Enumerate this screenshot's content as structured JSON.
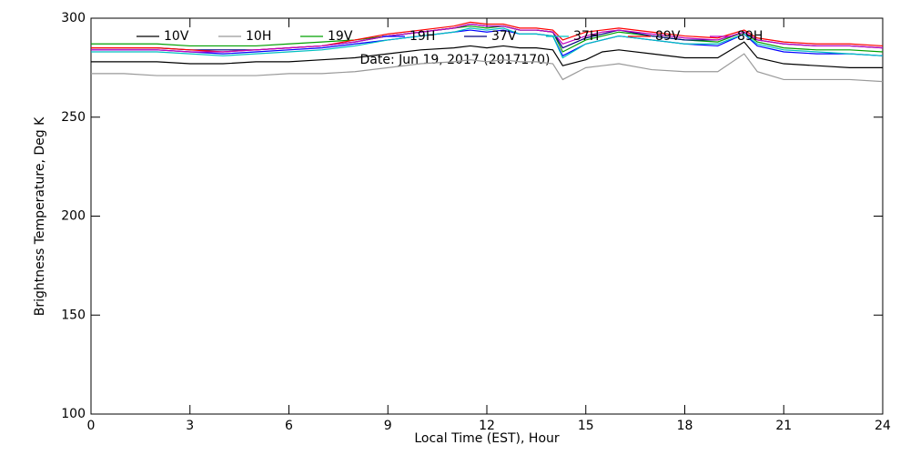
{
  "chart_data": {
    "type": "line",
    "annotation": "Date: Jun 19, 2017 (2017170)",
    "xlabel": "Local Time (EST), Hour",
    "ylabel": "Brightness Temperature, Deg K",
    "x": [
      0,
      1,
      2,
      3,
      4,
      5,
      6,
      7,
      8,
      9,
      10,
      11,
      11.5,
      12,
      12.5,
      13,
      13.5,
      14,
      14.3,
      15,
      15.5,
      16,
      17,
      18,
      19,
      19.8,
      20.2,
      21,
      22,
      23,
      24
    ],
    "xlim": [
      0,
      24
    ],
    "xticks": [
      0,
      3,
      6,
      9,
      12,
      15,
      18,
      21,
      24
    ],
    "ylim": [
      100,
      300
    ],
    "yticks": [
      100,
      150,
      200,
      250,
      300
    ],
    "legend": "top",
    "series": [
      {
        "name": "10V",
        "color": "#000000",
        "values": [
          278,
          278,
          278,
          277,
          277,
          278,
          278,
          279,
          280,
          282,
          284,
          285,
          286,
          285,
          286,
          285,
          285,
          284,
          276,
          279,
          283,
          284,
          282,
          280,
          280,
          288,
          280,
          277,
          276,
          275,
          275
        ]
      },
      {
        "name": "10H",
        "color": "#999999",
        "values": [
          272,
          272,
          271,
          271,
          271,
          271,
          272,
          272,
          273,
          275,
          277,
          278,
          279,
          278,
          279,
          278,
          278,
          277,
          269,
          275,
          276,
          277,
          274,
          273,
          273,
          282,
          273,
          269,
          269,
          269,
          268
        ]
      },
      {
        "name": "19V",
        "color": "#00a000",
        "values": [
          287,
          287,
          287,
          286,
          286,
          286,
          287,
          288,
          289,
          291,
          293,
          295,
          296,
          295,
          296,
          294,
          294,
          293,
          283,
          289,
          291,
          293,
          291,
          289,
          288,
          293,
          288,
          285,
          284,
          284,
          283
        ]
      },
      {
        "name": "19H",
        "color": "#0000ff",
        "values": [
          284,
          284,
          284,
          283,
          282,
          283,
          284,
          285,
          287,
          289,
          291,
          293,
          294,
          293,
          294,
          292,
          292,
          291,
          281,
          287,
          289,
          291,
          289,
          287,
          286,
          292,
          286,
          283,
          282,
          282,
          281
        ]
      },
      {
        "name": "37V",
        "color": "#000080",
        "values": [
          285,
          285,
          285,
          284,
          284,
          284,
          285,
          286,
          288,
          291,
          293,
          295,
          297,
          296,
          296,
          294,
          294,
          293,
          285,
          290,
          292,
          294,
          291,
          289,
          289,
          293,
          289,
          287,
          286,
          286,
          285
        ]
      },
      {
        "name": "37H",
        "color": "#00c0c0",
        "values": [
          283,
          283,
          283,
          282,
          281,
          282,
          283,
          284,
          286,
          289,
          291,
          293,
          295,
          294,
          295,
          292,
          292,
          291,
          280,
          287,
          289,
          291,
          289,
          287,
          287,
          292,
          287,
          284,
          283,
          282,
          281
        ]
      },
      {
        "name": "89V",
        "color": "#ff0000",
        "values": [
          285,
          285,
          285,
          284,
          283,
          284,
          285,
          286,
          289,
          292,
          294,
          296,
          298,
          297,
          297,
          295,
          295,
          294,
          289,
          293,
          294,
          295,
          293,
          291,
          290,
          294,
          290,
          288,
          287,
          287,
          286
        ]
      },
      {
        "name": "89H",
        "color": "#c000c0",
        "values": [
          284,
          284,
          284,
          283,
          283,
          284,
          285,
          286,
          288,
          291,
          293,
          295,
          297,
          296,
          296,
          294,
          294,
          293,
          287,
          291,
          293,
          294,
          292,
          290,
          289,
          293,
          289,
          287,
          286,
          286,
          285
        ]
      }
    ]
  }
}
